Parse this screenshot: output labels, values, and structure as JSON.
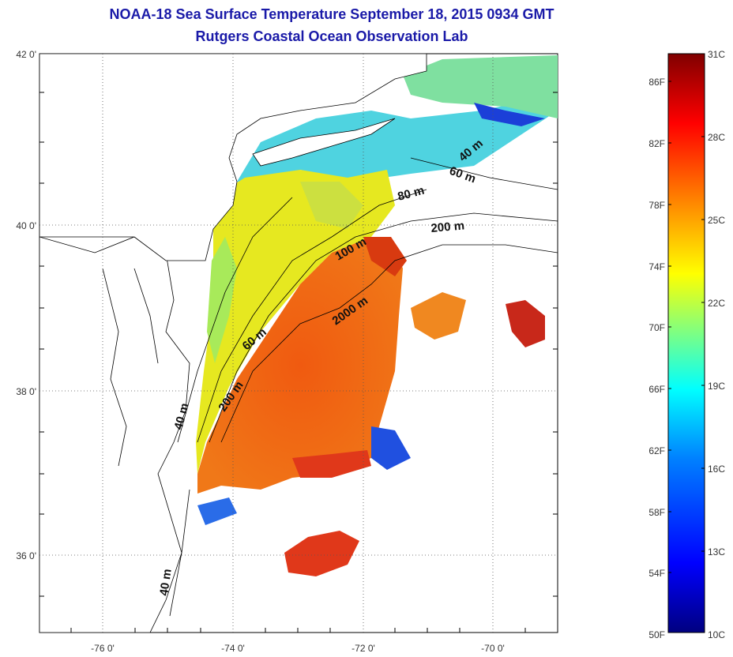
{
  "title": "NOAA-18 Sea Surface Temperature September 18, 2015 0934 GMT",
  "subtitle": "Rutgers Coastal Ocean Observation Lab",
  "lat_labels": [
    "42 0'",
    "40 0'",
    "38 0'",
    "36 0'"
  ],
  "lon_labels": [
    "-76 0'",
    "-74 0'",
    "-72 0'",
    "-70 0'"
  ],
  "isobaths": [
    "40 m",
    "60 m",
    "80 m",
    "200 m",
    "100 m",
    "2000 m",
    "60 m",
    "200 m",
    "40 m",
    "40 m"
  ],
  "colorbar": {
    "fahrenheit": [
      "86F",
      "82F",
      "78F",
      "74F",
      "70F",
      "66F",
      "62F",
      "58F",
      "54F",
      "50F"
    ],
    "celsius": [
      "31C",
      "28C",
      "25C",
      "22C",
      "19C",
      "16C",
      "13C",
      "10C"
    ],
    "range_c": [
      10,
      31
    ],
    "colors": [
      "#000080",
      "#0000ff",
      "#0080ff",
      "#00ffff",
      "#80ff80",
      "#ffff00",
      "#ff8000",
      "#ff0000",
      "#800000"
    ]
  },
  "map_extent": {
    "lon": [
      -77,
      -69
    ],
    "lat": [
      35,
      42
    ]
  }
}
